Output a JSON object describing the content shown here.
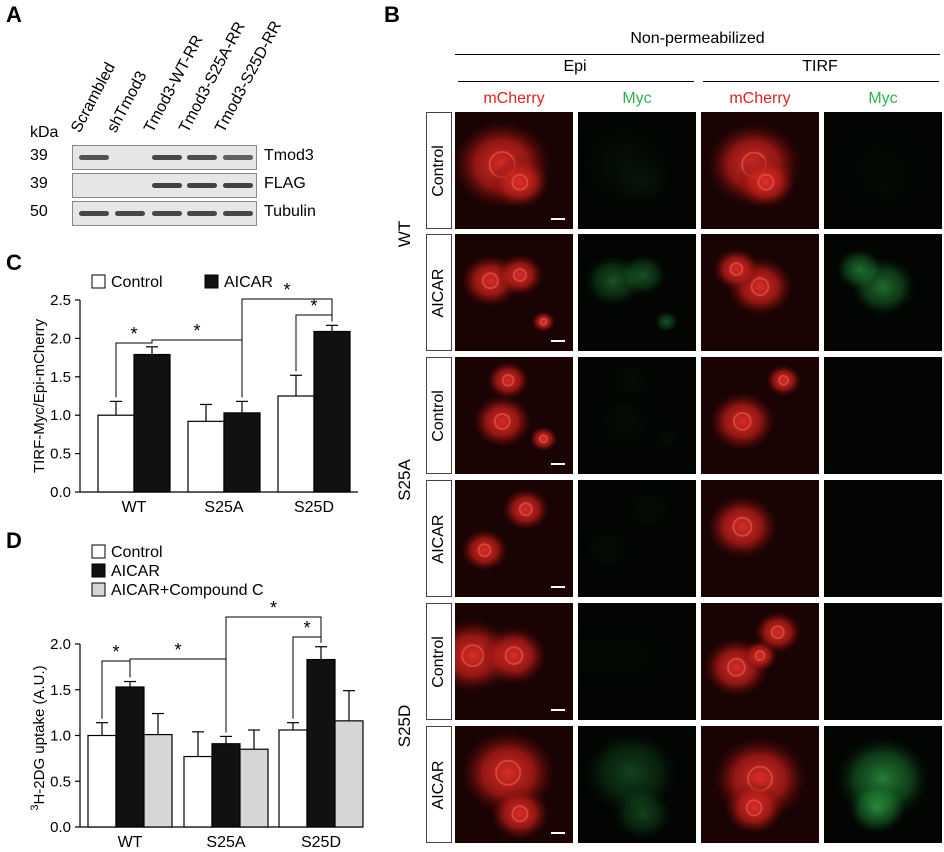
{
  "panelA": {
    "letter": "A",
    "kda_label": "kDa",
    "lanes": [
      "Scrambled",
      "shTmod3",
      "Tmod3-WT-RR",
      "Tmod3-S25A-RR",
      "Tmod3-S25D-RR"
    ],
    "blots": [
      {
        "marker": "39",
        "name": "Tmod3",
        "bands": [
          0.8,
          0.0,
          0.9,
          0.85,
          0.7
        ]
      },
      {
        "marker": "39",
        "name": "FLAG",
        "bands": [
          0.0,
          0.0,
          0.95,
          0.95,
          0.95
        ]
      },
      {
        "marker": "50",
        "name": "Tubulin",
        "bands": [
          0.9,
          0.9,
          0.9,
          0.9,
          0.9
        ]
      }
    ]
  },
  "panelB": {
    "letter": "B",
    "header_top": "Non-permeabilized",
    "header_epi": "Epi",
    "header_tirf": "TIRF",
    "channels": [
      "mCherry",
      "Myc",
      "mCherry",
      "Myc"
    ],
    "channel_colors": [
      "#e0241b",
      "#2eb44b",
      "#e0241b",
      "#2eb44b"
    ],
    "groups": [
      "WT",
      "S25A",
      "S25D"
    ],
    "rows": [
      "Control",
      "AICAR",
      "Control",
      "AICAR",
      "Control",
      "AICAR"
    ]
  },
  "panelC": {
    "letter": "C",
    "legend": [
      "Control",
      "AICAR"
    ],
    "chart_data": {
      "type": "bar",
      "categories": [
        "WT",
        "S25A",
        "S25D"
      ],
      "series": [
        {
          "name": "Control",
          "values": [
            1.0,
            0.92,
            1.25
          ],
          "errors": [
            0.18,
            0.22,
            0.27
          ],
          "color": "#ffffff"
        },
        {
          "name": "AICAR",
          "values": [
            1.79,
            1.03,
            2.09
          ],
          "errors": [
            0.1,
            0.15,
            0.08
          ],
          "color": "#111111"
        }
      ],
      "ylabel": "TIRF-Myc/Epi-mCherry",
      "ylim": [
        0,
        2.5
      ],
      "yticks": [
        "0.0",
        "0.5",
        "1.0",
        "1.5",
        "2.0",
        "2.5"
      ],
      "significance": [
        "*",
        "*",
        "*",
        "*"
      ]
    }
  },
  "panelD": {
    "letter": "D",
    "legend": [
      "Control",
      "AICAR",
      "AICAR+Compound C"
    ],
    "ylabel_sup": "3",
    "ylabel_rest": "H-2DG uptake (A.U.)",
    "chart_data": {
      "type": "bar",
      "categories": [
        "WT",
        "S25A",
        "S25D"
      ],
      "series": [
        {
          "name": "Control",
          "values": [
            1.0,
            0.77,
            1.06
          ],
          "errors": [
            0.14,
            0.27,
            0.08
          ],
          "color": "#ffffff"
        },
        {
          "name": "AICAR",
          "values": [
            1.53,
            0.91,
            1.83
          ],
          "errors": [
            0.06,
            0.08,
            0.14
          ],
          "color": "#111111"
        },
        {
          "name": "AICAR+Compound C",
          "values": [
            1.01,
            0.85,
            1.16
          ],
          "errors": [
            0.23,
            0.21,
            0.33
          ],
          "color": "#d6d6d6"
        }
      ],
      "ylim": [
        0,
        2.0
      ],
      "yticks": [
        "0.0",
        "0.5",
        "1.0",
        "1.5",
        "2.0"
      ],
      "significance": [
        "*",
        "*",
        "*",
        "*"
      ]
    }
  }
}
